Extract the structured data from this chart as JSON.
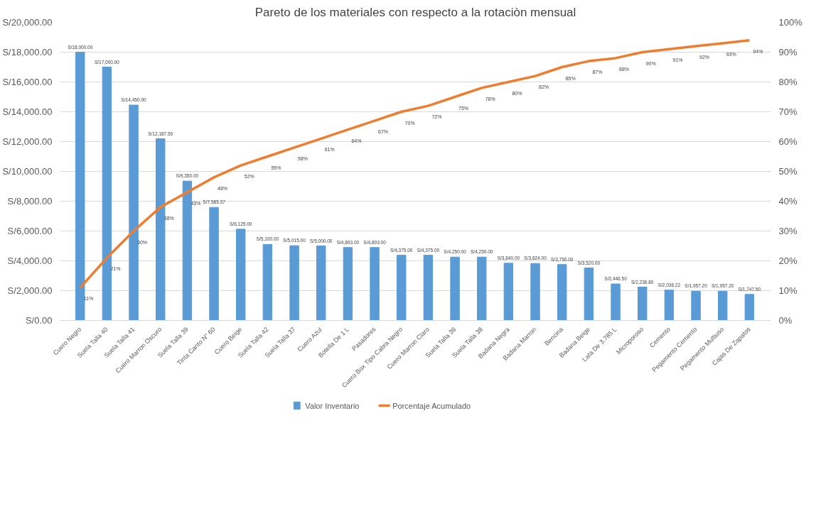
{
  "chart_data": {
    "type": "bar",
    "title": "Pareto de los materiales con respecto a la rotaciòn mensual",
    "categories": [
      "Cuero Negro",
      "Suela Talla 40",
      "Suela Talla 41",
      "Cuero Marron Oscuro",
      "Suela Talla 39",
      "Tinta Canto N° 60",
      "Cuero Beige",
      "Suela Talla 42",
      "Suela Talla 37",
      "Cuero Azul",
      "Botella De 1 L",
      "Pasadores",
      "Cuero Box Tipo Cabra Negro",
      "Cuero Marron Claro",
      "Suela Talla 36",
      "Suela Talla 38",
      "Badana Negra",
      "Badana Marron",
      "Bencina",
      "Badana Beige",
      "Lata De 3.785 L",
      "Microporoso",
      "Cemento",
      "Pegamento Cemento",
      "Pegamento Multiuso",
      "Cajas De Zapatos"
    ],
    "series": [
      {
        "name": "Valor Inventario",
        "color": "#5b9bd5",
        "values": [
          18000,
          17000,
          14450,
          12187.5,
          9350,
          7585.37,
          6125,
          5100,
          5015,
          5000,
          4893,
          4893,
          4375,
          4375,
          4250,
          4250,
          3840,
          3824,
          3750,
          3520,
          2446.5,
          2236.8,
          2036.22,
          1957.2,
          1957.2,
          1747.5
        ],
        "value_labels": [
          "S/18,000.00",
          "S/17,000.00",
          "S/14,450.00",
          "S/12,187.50",
          "S/9,350.00",
          "S/7,585.37",
          "S/6,125.00",
          "S/5,100.00",
          "S/5,015.00",
          "S/5,000.00",
          "S/4,893.00",
          "S/4,893.00",
          "S/4,375.00",
          "S/4,375.00",
          "S/4,250.00",
          "S/4,250.00",
          "S/3,840.00",
          "S/3,824.00",
          "S/3,750.00",
          "S/3,520.00",
          "S/2,446.50",
          "S/2,236.80",
          "S/2,036.22",
          "S/1,957.20",
          "S/1,957.20",
          "S/1,747.50"
        ]
      },
      {
        "name": "Porcentaje Acumulado",
        "type": "line",
        "axis": "y2",
        "color": "#ed7d31",
        "values": [
          11,
          21,
          30,
          38,
          43,
          48,
          52,
          55,
          58,
          61,
          64,
          67,
          70,
          72,
          75,
          78,
          80,
          82,
          85,
          87,
          88,
          90,
          91,
          92,
          93,
          94
        ],
        "value_labels": [
          "11%",
          "21%",
          "30%",
          "38%",
          "43%",
          "48%",
          "52%",
          "55%",
          "58%",
          "61%",
          "64%",
          "67%",
          "70%",
          "72%",
          "75%",
          "78%",
          "80%",
          "82%",
          "85%",
          "87%",
          "88%",
          "90%",
          "91%",
          "92%",
          "93%",
          "94%"
        ]
      }
    ],
    "ylim": [
      0,
      20000
    ],
    "yticks": [
      {
        "value": 0,
        "label": "S/0.00"
      },
      {
        "value": 2000,
        "label": "S/2,000.00"
      },
      {
        "value": 4000,
        "label": "S/4,000.00"
      },
      {
        "value": 6000,
        "label": "S/6,000.00"
      },
      {
        "value": 8000,
        "label": "S/8,000.00"
      },
      {
        "value": 10000,
        "label": "S/10,000.00"
      },
      {
        "value": 12000,
        "label": "S/12,000.00"
      },
      {
        "value": 14000,
        "label": "S/14,000.00"
      },
      {
        "value": 16000,
        "label": "S/16,000.00"
      },
      {
        "value": 18000,
        "label": "S/18,000.00"
      },
      {
        "value": 20000,
        "label": "S/20,000.00"
      }
    ],
    "y2lim": [
      0,
      100
    ],
    "y2ticks": [
      {
        "value": 0,
        "label": "0%"
      },
      {
        "value": 10,
        "label": "10%"
      },
      {
        "value": 20,
        "label": "20%"
      },
      {
        "value": 30,
        "label": "30%"
      },
      {
        "value": 40,
        "label": "40%"
      },
      {
        "value": 50,
        "label": "50%"
      },
      {
        "value": 60,
        "label": "60%"
      },
      {
        "value": 70,
        "label": "70%"
      },
      {
        "value": 80,
        "label": "80%"
      },
      {
        "value": 90,
        "label": "90%"
      },
      {
        "value": 100,
        "label": "100%"
      }
    ],
    "grid": "y",
    "legend": "bottom"
  }
}
